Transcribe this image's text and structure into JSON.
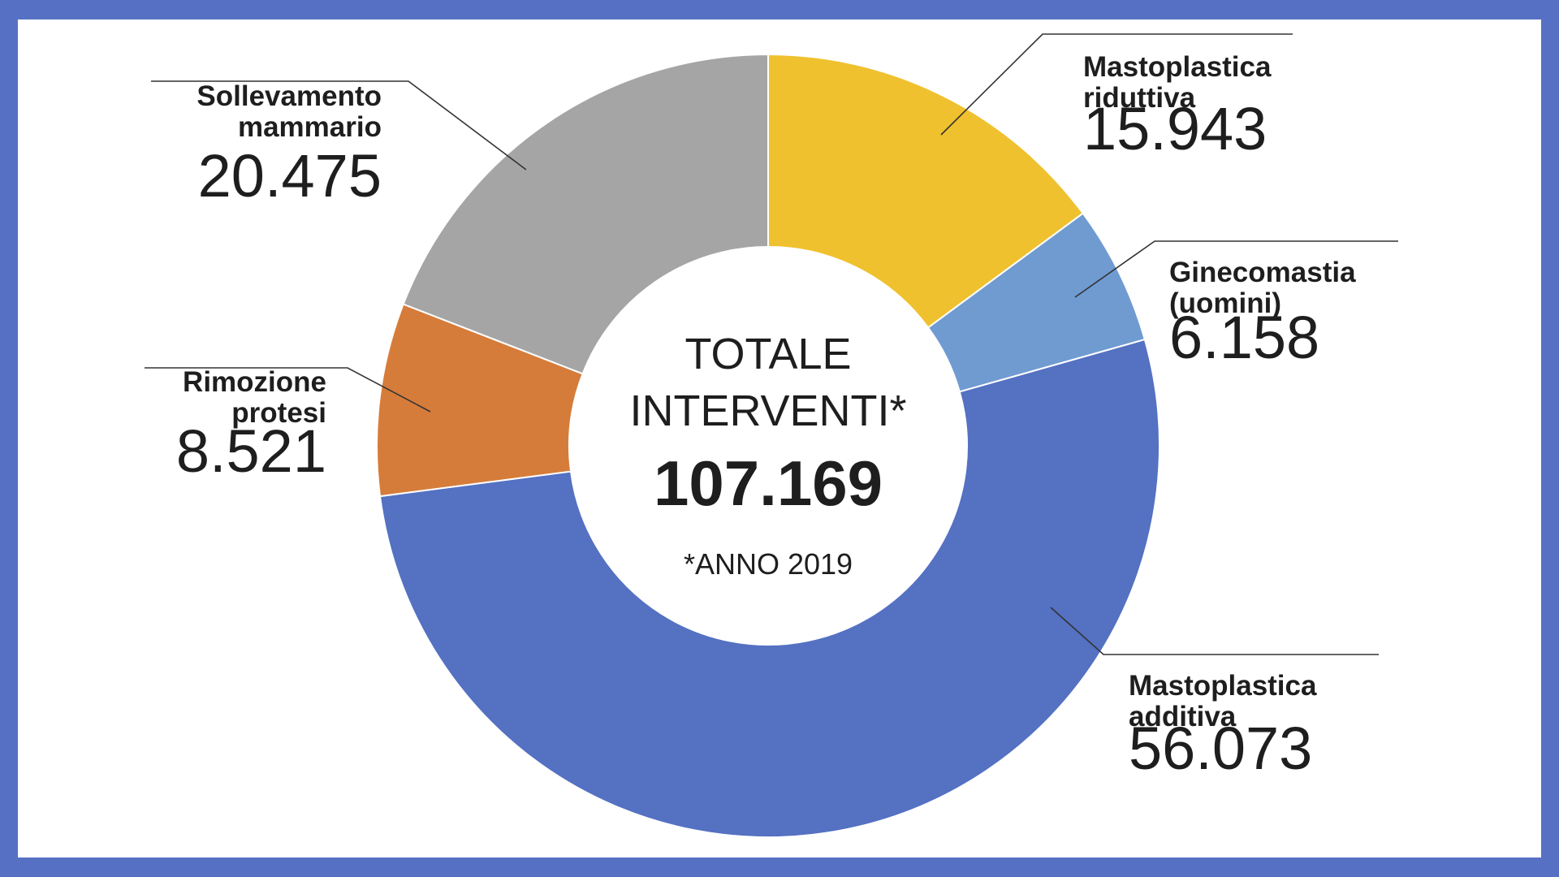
{
  "chart_data": {
    "type": "pie",
    "donut": true,
    "center": {
      "title_line1": "TOTALE",
      "title_line2": "INTERVENTI*",
      "total": "107.169",
      "note": "*ANNO 2019"
    },
    "slices": [
      {
        "id": "mastoplastica-riduttiva",
        "name_lines": [
          "Mastoplastica",
          "riduttiva"
        ],
        "value": 15943,
        "value_label": "15.943",
        "color": "#f0c12e"
      },
      {
        "id": "ginecomastia",
        "name_lines": [
          "Ginecomastia",
          "(uomini)"
        ],
        "value": 6158,
        "value_label": "6.158",
        "color": "#6f9bd1"
      },
      {
        "id": "mastoplastica-additiva",
        "name_lines": [
          "Mastoplastica",
          "additiva"
        ],
        "value": 56073,
        "value_label": "56.073",
        "color": "#5471c2"
      },
      {
        "id": "rimozione-protesi",
        "name_lines": [
          "Rimozione",
          "protesi"
        ],
        "value": 8521,
        "value_label": "8.521",
        "color": "#d67c3a"
      },
      {
        "id": "sollevamento-mammario",
        "name_lines": [
          "Sollevamento",
          "mammario"
        ],
        "value": 20475,
        "value_label": "20.475",
        "color": "#a5a5a5"
      }
    ]
  }
}
